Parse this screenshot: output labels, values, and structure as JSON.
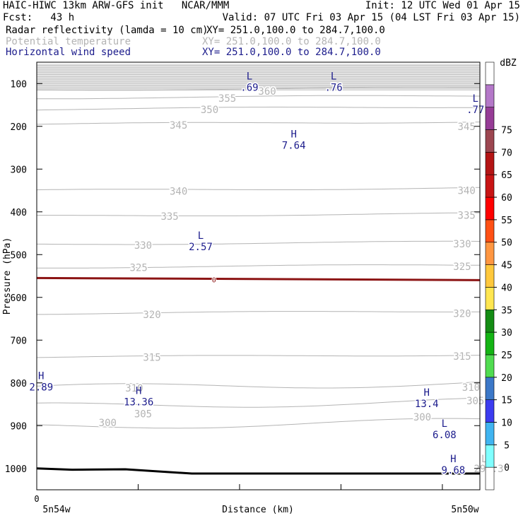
{
  "header": {
    "line1_left": "HAIC-HIWC 13km ARW-GFS init   NCAR/MMM",
    "line1_right": "Init: 12 UTC Wed 01 Apr 15",
    "line2_left": "Fcst:   43 h",
    "line2_right": "Valid: 07 UTC Fri 03 Apr 15 (04 LST Fri 03 Apr 15)",
    "fields": [
      {
        "name": "Radar reflectivity (lamda = 10 cm)",
        "xy": "XY= 251.0,100.0 to 284.7,100.0",
        "color": "#000000"
      },
      {
        "name": "Potential temperature",
        "xy": "XY= 251.0,100.0 to 284.7,100.0",
        "color": "#b4b4b4"
      },
      {
        "name": "Horizontal wind speed",
        "xy": "XY= 251.0,100.0 to 284.7,100.0",
        "color": "#1c1c8c"
      }
    ]
  },
  "chart_data": {
    "type": "line",
    "title": "",
    "xlabel": "Distance (km)",
    "ylabel": "Pressure (hPa)",
    "x_tick_labels": [
      {
        "value": 0,
        "label": "0"
      }
    ],
    "x_endpoints": {
      "left": "5n54w",
      "right": "5n50w"
    },
    "xlim": [
      0,
      1
    ],
    "ylim": [
      1050,
      50
    ],
    "y_ticks": [
      100,
      200,
      300,
      400,
      500,
      600,
      700,
      800,
      900,
      1000
    ],
    "theta_contours": [
      {
        "label": "360",
        "p": 115
      },
      {
        "label": "355",
        "p": 134
      },
      {
        "label": "350",
        "p": 160
      },
      {
        "label": "345",
        "p": 195
      },
      {
        "label": "340",
        "p": 350
      },
      {
        "label": "335",
        "p": 410
      },
      {
        "label": "330",
        "p": 476
      },
      {
        "label": "325",
        "p": 530
      },
      {
        "label": "320",
        "p": 638
      },
      {
        "label": "315",
        "p": 740
      },
      {
        "label": "310",
        "p": 812
      },
      {
        "label": "305",
        "p": 855
      },
      {
        "label": "300",
        "p": 902
      }
    ],
    "theta_labels": [
      {
        "text": "360",
        "x": 0.52,
        "p": 118
      },
      {
        "text": "355",
        "x": 0.43,
        "p": 134
      },
      {
        "text": "350",
        "x": 0.39,
        "p": 161
      },
      {
        "text": "345",
        "x": 0.32,
        "p": 197
      },
      {
        "text": "345",
        "x": 0.97,
        "p": 200
      },
      {
        "text": "340",
        "x": 0.32,
        "p": 352
      },
      {
        "text": "340",
        "x": 0.97,
        "p": 350
      },
      {
        "text": "335",
        "x": 0.3,
        "p": 410
      },
      {
        "text": "335",
        "x": 0.97,
        "p": 408
      },
      {
        "text": "330",
        "x": 0.24,
        "p": 478
      },
      {
        "text": "330",
        "x": 0.96,
        "p": 475
      },
      {
        "text": "325",
        "x": 0.23,
        "p": 530
      },
      {
        "text": "325",
        "x": 0.96,
        "p": 528
      },
      {
        "text": "320",
        "x": 0.26,
        "p": 640
      },
      {
        "text": "320",
        "x": 0.96,
        "p": 638
      },
      {
        "text": "315",
        "x": 0.26,
        "p": 740
      },
      {
        "text": "315",
        "x": 0.96,
        "p": 738
      },
      {
        "text": "310",
        "x": 0.22,
        "p": 812
      },
      {
        "text": "310",
        "x": 0.98,
        "p": 810
      },
      {
        "text": "305",
        "x": 0.24,
        "p": 872
      },
      {
        "text": "305",
        "x": 0.99,
        "p": 842
      },
      {
        "text": "300",
        "x": 0.16,
        "p": 893
      },
      {
        "text": "300",
        "x": 0.87,
        "p": 880
      },
      {
        "text": "297.3",
        "x": 1.02,
        "p": 1000
      }
    ],
    "isotherm_0C": {
      "label": "0",
      "p": 558,
      "color": "#8c1414"
    },
    "surface": {
      "p_left": 1000,
      "p_right": 1012
    },
    "extrema": [
      {
        "type": "L",
        "value": ".69",
        "x": 0.48,
        "p": 82
      },
      {
        "type": "L",
        "value": ".76",
        "x": 0.67,
        "p": 82
      },
      {
        "type": "L",
        "value": ".77",
        "x": 0.99,
        "p": 134
      },
      {
        "type": "H",
        "value": "7.64",
        "x": 0.58,
        "p": 218
      },
      {
        "type": "L",
        "value": "2.57",
        "x": 0.37,
        "p": 455
      },
      {
        "type": "H",
        "value": "2.89",
        "x": 0.01,
        "p": 783
      },
      {
        "type": "H",
        "value": "13.36",
        "x": 0.23,
        "p": 818
      },
      {
        "type": "H",
        "value": "13.4",
        "x": 0.88,
        "p": 822
      },
      {
        "type": "L",
        "value": "6.08",
        "x": 0.92,
        "p": 895
      },
      {
        "type": "H",
        "value": "9.68",
        "x": 0.94,
        "p": 977
      },
      {
        "type": "L",
        "value": "",
        "x": 1.01,
        "p": 977
      }
    ],
    "colorbar": {
      "unit": "dBZ",
      "levels": [
        "0",
        "5",
        "10",
        "15",
        "20",
        "25",
        "30",
        "35",
        "40",
        "45",
        "50",
        "55",
        "60",
        "65",
        "70",
        "75"
      ],
      "colors": [
        "#ffffff",
        "#80ffff",
        "#40b4f0",
        "#3c3cf0",
        "#3c78c8",
        "#50dc50",
        "#14b414",
        "#148c14",
        "#ffe650",
        "#ffc83c",
        "#ff9641",
        "#ff5014",
        "#ff0000",
        "#c81414",
        "#b41414",
        "#9c4650",
        "#963c96",
        "#b478c8",
        "#ffffff"
      ]
    }
  }
}
